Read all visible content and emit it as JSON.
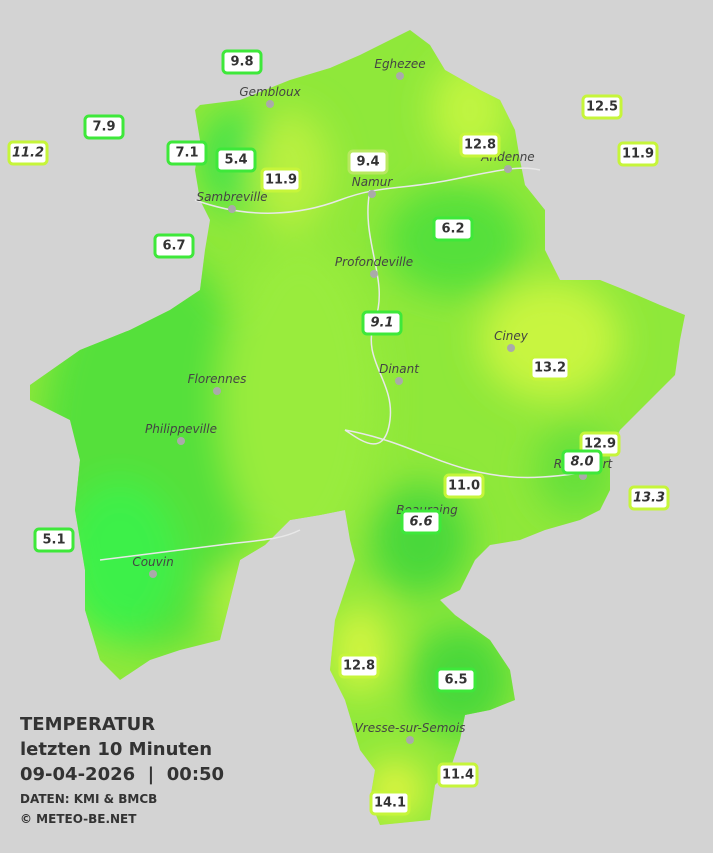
{
  "legend": {
    "title": "TEMPERATUR",
    "subtitle": "letzten 10 Minuten",
    "datetime": "09-04-2026  |  00:50",
    "source": "DATEN: KMI & BMCB",
    "copyright": "© METEO-BE.NET"
  },
  "cities": [
    "Eghezee",
    "Gembloux",
    "Andenne",
    "Namur",
    "Sambreville",
    "Profondeville",
    "Ciney",
    "Dinant",
    "Florennes",
    "Philippeville",
    "Rochefort",
    "Beauraing",
    "Couvin",
    "Vresse-sur-Semois"
  ],
  "stations": [
    "9.8",
    "7.9",
    "11.2",
    "7.1",
    "5.4",
    "11.9",
    "9.4",
    "12.8",
    "12.5",
    "11.9",
    "6.7",
    "6.2",
    "9.1",
    "13.2",
    "12.9",
    "8.0",
    "13.3",
    "11.0",
    "6.6",
    "5.1",
    "12.8",
    "6.5",
    "11.4",
    "14.1"
  ]
}
